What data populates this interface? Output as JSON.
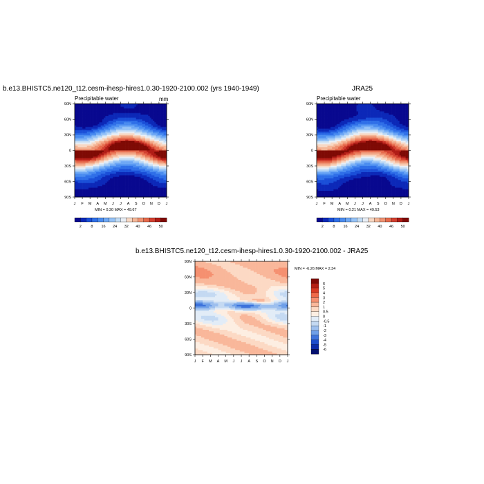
{
  "chart_data": [
    {
      "id": "model",
      "type": "heatmap",
      "title": "b.e13.BHISTC5.ne120_t12.cesm-ihesp-hires1.0.30-1920-2100.002 (yrs 1940-1949)",
      "left_label": "Precipitable water",
      "right_label": "mm",
      "x_ticks": [
        "J",
        "F",
        "M",
        "A",
        "M",
        "J",
        "J",
        "A",
        "S",
        "O",
        "N",
        "D",
        "J"
      ],
      "y_ticks": [
        "90N",
        "60N",
        "30N",
        "0",
        "30S",
        "60S",
        "90S"
      ],
      "stats": "MIN =   0.30 MAX =  49.67",
      "min": 0.3,
      "max": 49.67,
      "colorbar_labels": [
        "2",
        "8",
        "16",
        "24",
        "32",
        "40",
        "46",
        "50"
      ]
    },
    {
      "id": "obs",
      "type": "heatmap",
      "title": "JRA25",
      "left_label": "Precipitable water",
      "right_label": "",
      "x_ticks": [
        "J",
        "F",
        "M",
        "A",
        "M",
        "J",
        "J",
        "A",
        "S",
        "O",
        "N",
        "D",
        "J"
      ],
      "y_ticks": [
        "90N",
        "60N",
        "30N",
        "0",
        "30S",
        "60S",
        "90S"
      ],
      "stats": "MIN =   0.21 MAX =  49.53",
      "min": 0.21,
      "max": 49.53,
      "colorbar_labels": [
        "2",
        "8",
        "16",
        "24",
        "32",
        "40",
        "46",
        "50"
      ]
    },
    {
      "id": "diff",
      "type": "heatmap",
      "title": "b.e13.BHISTC5.ne120_t12.cesm-ihesp-hires1.0.30-1920-2100.002 - JRA25",
      "x_ticks": [
        "J",
        "F",
        "M",
        "A",
        "M",
        "J",
        "J",
        "A",
        "S",
        "O",
        "N",
        "D",
        "J"
      ],
      "y_ticks": [
        "90N",
        "60N",
        "30N",
        "0",
        "30S",
        "60S",
        "90S"
      ],
      "stats": "MIN =  -6.26 MAX =   2.34",
      "min": -6.26,
      "max": 2.34,
      "colorbar_labels": [
        "6",
        "5",
        "4",
        "3",
        "2",
        "1",
        "0.5",
        "0",
        "-0.5",
        "-1",
        "-2",
        "-3",
        "-4",
        "-5",
        "-6"
      ]
    }
  ],
  "colors": {
    "abs_palette": [
      "#08088f",
      "#0c28b8",
      "#1a4fd8",
      "#2f6fe8",
      "#4a8cf0",
      "#6ea8f5",
      "#96c3f7",
      "#c2dcf5",
      "#e8eef5",
      "#f8d8c4",
      "#f5b798",
      "#ef9272",
      "#e66a4c",
      "#d24030",
      "#b01c16",
      "#7f0a05"
    ],
    "diff_palette": [
      "#7f0a05",
      "#b51f12",
      "#d83a22",
      "#ef6a48",
      "#f59070",
      "#f9b79a",
      "#fcd9c4",
      "#fdeee2",
      "#e2ecf7",
      "#c4d9f2",
      "#9dbfee",
      "#6e9fe8",
      "#3d73dc",
      "#1c4ccc",
      "#0b2aa8",
      "#04106f"
    ]
  }
}
